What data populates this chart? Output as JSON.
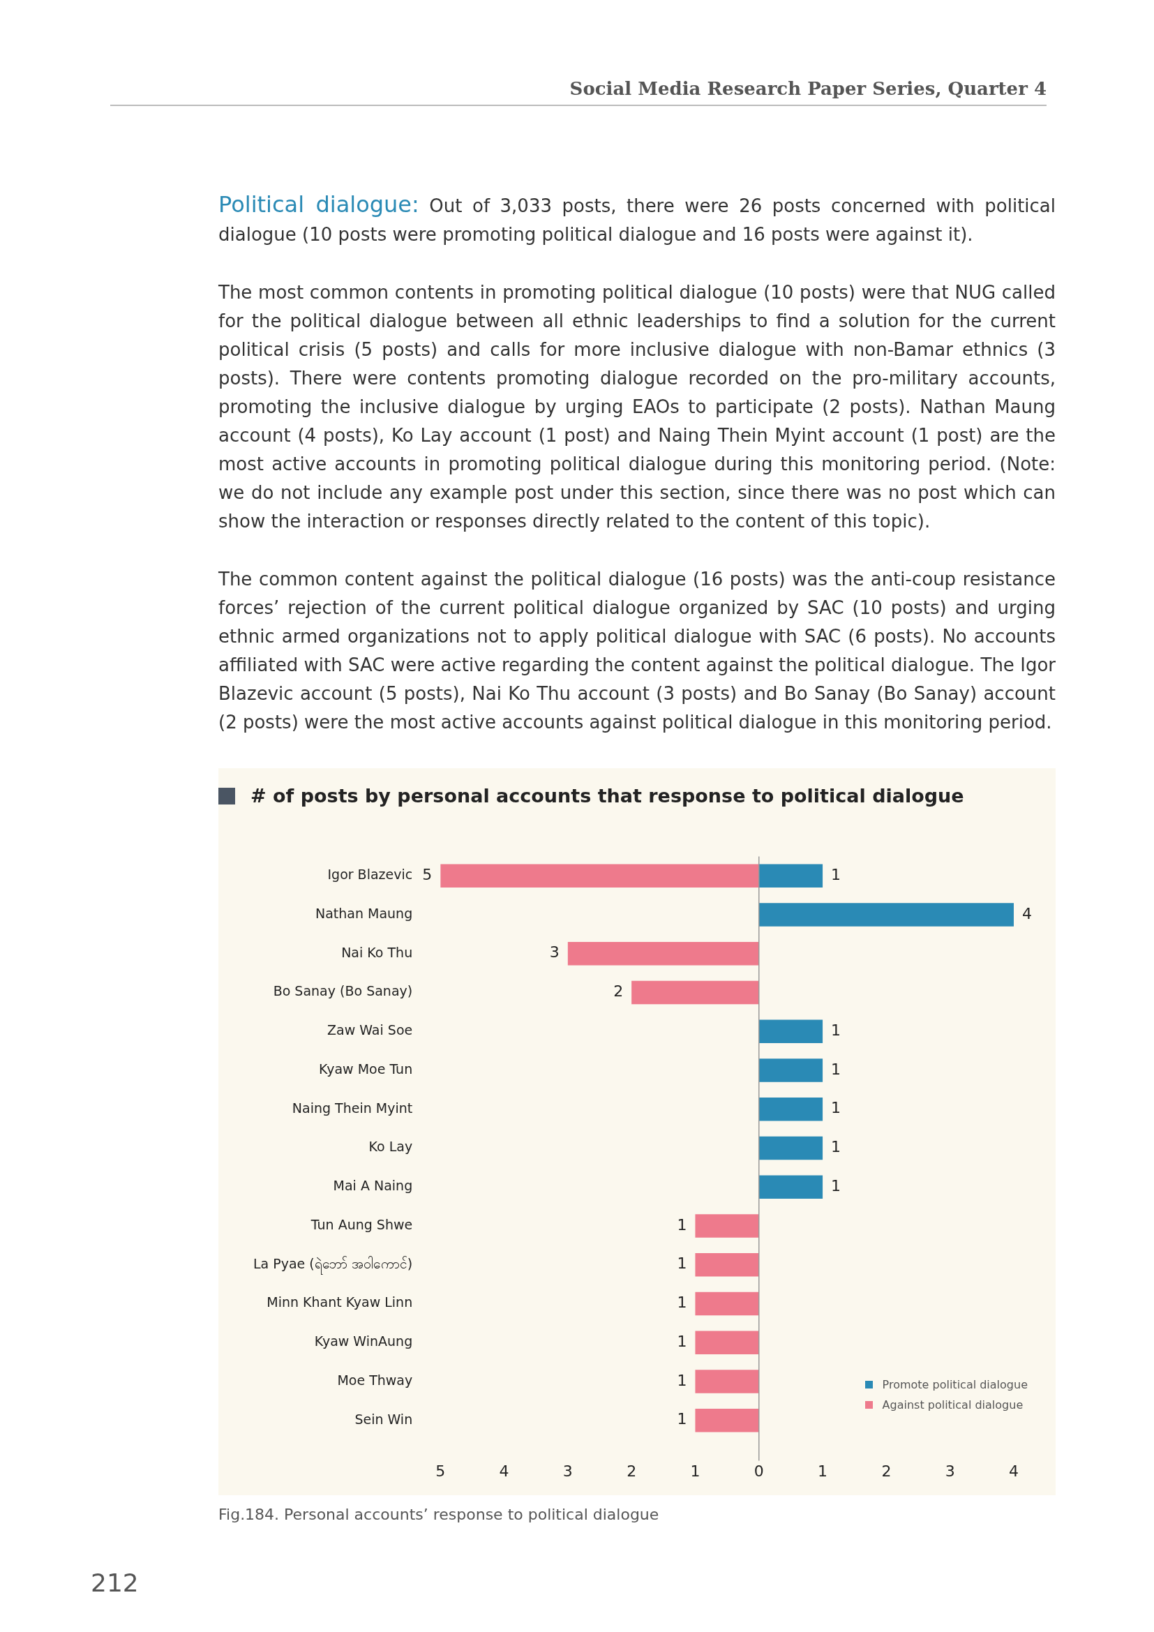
{
  "chart_data": {
    "type": "bar",
    "orientation": "horizontal",
    "title": "# of posts by personal accounts that response to political dialogue",
    "categories": [
      "Igor Blazevic",
      "Nathan Maung",
      "Nai Ko Thu",
      "Bo Sanay (Bo Sanay)",
      "Zaw Wai Soe",
      "Kyaw Moe Tun",
      "Naing Thein Myint",
      "Ko Lay",
      "Mai A Naing",
      "Tun Aung Shwe",
      "La Pyae (ရဲဘော် အဝါကောင်)",
      "Minn Khant Kyaw Linn",
      "Kyaw WinAung",
      "Moe Thway",
      "Sein Win"
    ],
    "series": [
      {
        "name": "Promote political dialogue",
        "color": "#2a8ab5",
        "values": [
          1,
          4,
          null,
          null,
          1,
          1,
          1,
          1,
          1,
          null,
          null,
          null,
          null,
          null,
          null
        ],
        "value_labels": [
          "1",
          "4",
          null,
          null,
          "1",
          "1",
          "1",
          "1",
          "1",
          null,
          null,
          null,
          null,
          null,
          null
        ]
      },
      {
        "name": "Against political dialogue",
        "color": "#ee7a8c",
        "values": [
          5,
          null,
          3,
          2,
          null,
          null,
          null,
          null,
          null,
          1,
          1,
          1,
          1,
          1,
          1
        ],
        "base": [
          -5,
          null,
          -3,
          -2,
          null,
          null,
          null,
          null,
          null,
          -1,
          -1,
          -1,
          -1,
          -1,
          -1
        ],
        "value_labels": [
          "5",
          null,
          "3",
          "2",
          null,
          null,
          null,
          null,
          null,
          "1",
          "1",
          "1",
          "1",
          "1",
          "1"
        ]
      }
    ],
    "xlim": [
      -5,
      4
    ],
    "xticks": [
      {
        "value": -5,
        "label": "5"
      },
      {
        "value": -4,
        "label": "4"
      },
      {
        "value": -3,
        "label": "3"
      },
      {
        "value": -2,
        "label": "2"
      },
      {
        "value": -1,
        "label": "1"
      },
      0,
      1,
      2,
      3,
      4
    ],
    "ref_lines": [
      {
        "axis": "x",
        "value": 0,
        "label": null,
        "color": "#999999"
      }
    ],
    "legend": "bottom right",
    "grid": false,
    "annotations": [
      "Social Media Research Paper Series, Quarter 4",
      "Political dialogue:",
      "Out of 3,033 posts, there were 26 posts concerned with political dialogue (10 posts were promoting political dialogue and 16 posts were against it).",
      "The most common contents in promoting political dialogue (10 posts) were that NUG called for the political dialogue between all ethnic leaderships to find a solution for the current political crisis (5 posts) and calls for more inclusive dialogue with non-Bamar ethnics (3 posts). There were contents promoting dialogue recorded on the pro-military accounts, promoting the inclusive dialogue by urging EAOs to participate (2 posts). Nathan Maung account (4 posts), Ko Lay account (1 post) and Naing Thein Myint account (1 post) are the most active accounts in promoting political dialogue during this monitoring period. (Note: we do not include any example post under this section, since there was no post which can show the interaction or responses directly related to the content of this topic).",
      "The common content against the political dialogue (16 posts) was the anti-coup resistance forces’ rejection of the current political dialogue organized by SAC (10 posts) and urging ethnic armed organizations not to apply political dialogue with SAC (6 posts). No accounts affiliated with SAC were active regarding the content against the political dialogue. The Igor Blazevic account (5 posts), Nai Ko Thu account (3 posts) and Bo Sanay (Bo Sanay) account (2 posts) were the most active accounts against political dialogue in this monitoring period.",
      "Fig.184. Personal accounts’ response to political dialogue",
      "212"
    ]
  }
}
